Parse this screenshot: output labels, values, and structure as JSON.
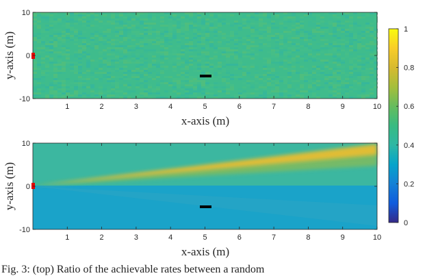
{
  "chart_data": [
    {
      "type": "heatmap",
      "position": "top",
      "xlabel": "x-axis (m)",
      "ylabel": "y-axis (m)",
      "xlim": [
        0,
        10
      ],
      "ylim": [
        -10,
        10
      ],
      "xticks": [
        "1",
        "2",
        "3",
        "4",
        "5",
        "6",
        "7",
        "8",
        "9",
        "10"
      ],
      "yticks": [
        "10",
        "0",
        "-10"
      ],
      "field_description_values": {
        "mean": 0.6,
        "noise": 0.03
      },
      "transmitter": {
        "x": 0,
        "y": 0,
        "color": "#e00000"
      },
      "receiver": {
        "x": 5,
        "y": -5,
        "color": "#000000"
      }
    },
    {
      "type": "heatmap",
      "position": "bottom",
      "xlabel": "x-axis (m)",
      "ylabel": "y-axis (m)",
      "xlim": [
        0,
        10
      ],
      "ylim": [
        -10,
        10
      ],
      "xticks": [
        "1",
        "2",
        "3",
        "4",
        "5",
        "6",
        "7",
        "8",
        "9",
        "10"
      ],
      "yticks": [
        "10",
        "0",
        "-10"
      ],
      "beam": {
        "origin": [
          0,
          0
        ],
        "end": [
          10,
          8.5
        ],
        "peak": 0.9,
        "background_upper": 0.57,
        "background_lower": 0.44
      },
      "transmitter": {
        "x": 0,
        "y": 0,
        "color": "#e00000"
      },
      "receiver": {
        "x": 5,
        "y": -5,
        "color": "#000000"
      }
    }
  ],
  "colorbar": {
    "ticks": [
      "0",
      "0.2",
      "0.4",
      "0.6",
      "0.8",
      "1"
    ],
    "range": [
      0,
      1
    ],
    "colormap": "parula"
  },
  "caption": "Fig. 3: (top) Ratio of the achievable rates between a random"
}
